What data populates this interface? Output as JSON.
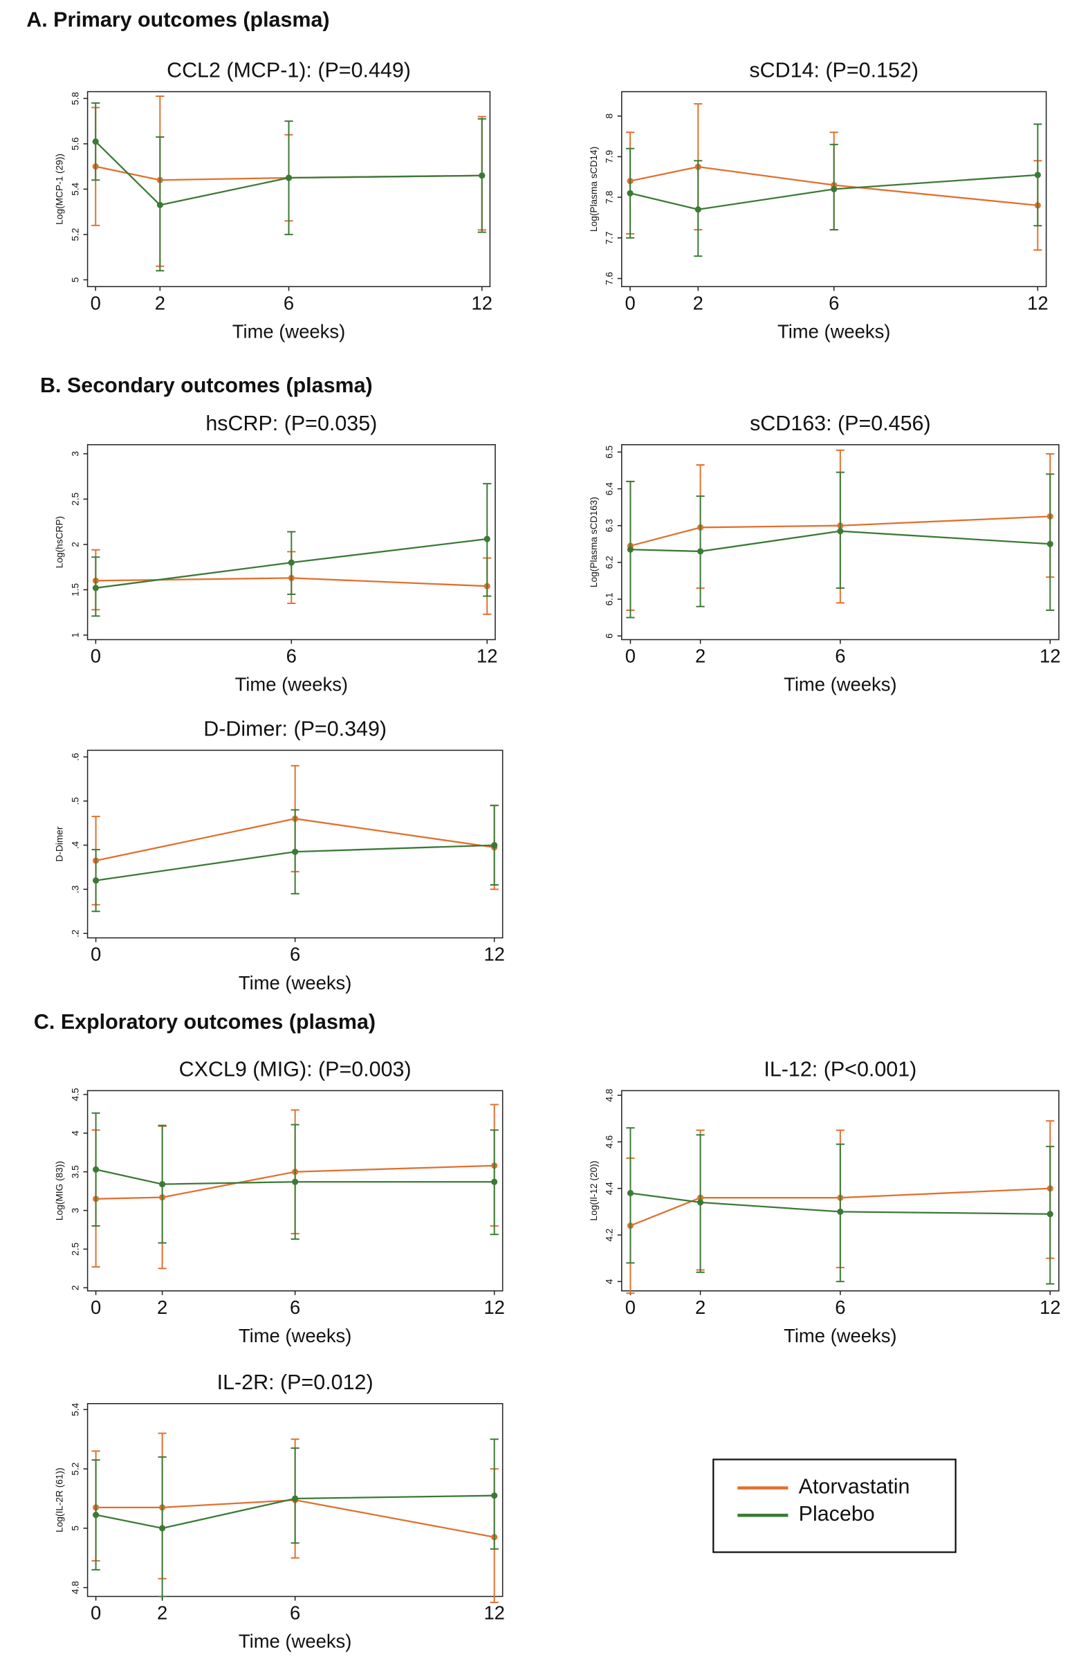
{
  "sections": [
    "A. Primary outcomes (plasma)",
    "B. Secondary outcomes (plasma)",
    "C. Exploratory outcomes (plasma)"
  ],
  "chart_data": [
    {
      "type": "line",
      "title": "CCL2 (MCP-1): (P=0.449)",
      "xlabel": "Time (weeks)",
      "ylabel": "Log(MCP-1 (29))",
      "x": [
        0,
        2,
        6,
        12
      ],
      "xlim": [
        -0.25,
        12.25
      ],
      "xticks": [
        0,
        2,
        6,
        12
      ],
      "ylim": [
        4.97,
        5.83
      ],
      "yticks": [
        5,
        5.2,
        5.4,
        5.6,
        5.8
      ],
      "series": [
        {
          "name": "Atorvastatin",
          "color": "#e0702e",
          "values": [
            5.5,
            5.44,
            5.45,
            5.46
          ],
          "lower": [
            5.24,
            5.06,
            5.26,
            5.22
          ],
          "upper": [
            5.76,
            5.81,
            5.64,
            5.72
          ]
        },
        {
          "name": "Placebo",
          "color": "#3b7a35",
          "values": [
            5.61,
            5.33,
            5.45,
            5.46
          ],
          "lower": [
            5.44,
            5.04,
            5.2,
            5.21
          ],
          "upper": [
            5.78,
            5.63,
            5.7,
            5.71
          ]
        }
      ]
    },
    {
      "type": "line",
      "title": "sCD14: (P=0.152)",
      "xlabel": "Time (weeks)",
      "ylabel": "Log(Plasma sCD14)",
      "x": [
        0,
        2,
        6,
        12
      ],
      "xlim": [
        -0.25,
        12.25
      ],
      "xticks": [
        0,
        2,
        6,
        12
      ],
      "ylim": [
        7.58,
        8.06
      ],
      "yticks": [
        7.6,
        7.7,
        7.8,
        7.9,
        8
      ],
      "series": [
        {
          "name": "Atorvastatin",
          "color": "#e0702e",
          "values": [
            7.84,
            7.875,
            7.83,
            7.78
          ],
          "lower": [
            7.71,
            7.72,
            7.72,
            7.67
          ],
          "upper": [
            7.96,
            8.03,
            7.96,
            7.89
          ]
        },
        {
          "name": "Placebo",
          "color": "#3b7a35",
          "values": [
            7.81,
            7.77,
            7.82,
            7.855
          ],
          "lower": [
            7.7,
            7.655,
            7.72,
            7.73
          ],
          "upper": [
            7.92,
            7.89,
            7.93,
            7.98
          ]
        }
      ]
    },
    {
      "type": "line",
      "title": "hsCRP: (P=0.035)",
      "xlabel": "Time (weeks)",
      "ylabel": "Log(hsCRP)",
      "x": [
        0,
        6,
        12
      ],
      "xlim": [
        -0.25,
        12.25
      ],
      "xticks": [
        0,
        6,
        12
      ],
      "ylim": [
        0.95,
        3.1
      ],
      "yticks": [
        1,
        1.5,
        2,
        2.5,
        3
      ],
      "series": [
        {
          "name": "Atorvastatin",
          "color": "#e0702e",
          "values": [
            1.6,
            1.63,
            1.54
          ],
          "lower": [
            1.28,
            1.35,
            1.23
          ],
          "upper": [
            1.94,
            1.92,
            1.85
          ]
        },
        {
          "name": "Placebo",
          "color": "#3b7a35",
          "values": [
            1.52,
            1.8,
            2.06
          ],
          "lower": [
            1.21,
            1.45,
            1.43
          ],
          "upper": [
            1.86,
            2.14,
            2.67
          ]
        }
      ]
    },
    {
      "type": "line",
      "title": "sCD163: (P=0.456)",
      "xlabel": "Time (weeks)",
      "ylabel": "Log(Plasma sCD163)",
      "x": [
        0,
        2,
        6,
        12
      ],
      "xlim": [
        -0.25,
        12.25
      ],
      "xticks": [
        0,
        2,
        6,
        12
      ],
      "ylim": [
        5.99,
        6.52
      ],
      "yticks": [
        6,
        6.1,
        6.2,
        6.3,
        6.4,
        6.5
      ],
      "series": [
        {
          "name": "Atorvastatin",
          "color": "#e0702e",
          "values": [
            6.245,
            6.295,
            6.3,
            6.325
          ],
          "lower": [
            6.07,
            6.13,
            6.09,
            6.16
          ],
          "upper": [
            6.42,
            6.465,
            6.505,
            6.495
          ]
        },
        {
          "name": "Placebo",
          "color": "#3b7a35",
          "values": [
            6.235,
            6.23,
            6.285,
            6.25
          ],
          "lower": [
            6.05,
            6.08,
            6.13,
            6.07
          ],
          "upper": [
            6.42,
            6.38,
            6.445,
            6.44
          ]
        }
      ]
    },
    {
      "type": "line",
      "title": "D-Dimer: (P=0.349)",
      "xlabel": "Time (weeks)",
      "ylabel": "D-Dimer",
      "x": [
        0,
        6,
        12
      ],
      "xlim": [
        -0.25,
        12.25
      ],
      "xticks": [
        0,
        6,
        12
      ],
      "ylim": [
        0.19,
        0.615
      ],
      "yticks": [
        {
          "value": 0.2,
          "label": ".2"
        },
        {
          "value": 0.3,
          "label": ".3"
        },
        {
          "value": 0.4,
          "label": ".4"
        },
        {
          "value": 0.5,
          "label": ".5"
        },
        {
          "value": 0.6,
          "label": ".6"
        }
      ],
      "series": [
        {
          "name": "Atorvastatin",
          "color": "#e0702e",
          "values": [
            0.365,
            0.46,
            0.395
          ],
          "lower": [
            0.265,
            0.34,
            0.3
          ],
          "upper": [
            0.465,
            0.58,
            0.49
          ]
        },
        {
          "name": "Placebo",
          "color": "#3b7a35",
          "values": [
            0.32,
            0.385,
            0.4
          ],
          "lower": [
            0.25,
            0.29,
            0.31
          ],
          "upper": [
            0.39,
            0.48,
            0.49
          ]
        }
      ]
    },
    {
      "type": "line",
      "title": "CXCL9 (MIG): (P=0.003)",
      "xlabel": "Time (weeks)",
      "ylabel": "Log(MIG (83))",
      "x": [
        0,
        2,
        6,
        12
      ],
      "xlim": [
        -0.25,
        12.25
      ],
      "xticks": [
        0,
        2,
        6,
        12
      ],
      "ylim": [
        1.96,
        4.55
      ],
      "yticks": [
        2,
        2.5,
        3,
        3.5,
        4,
        4.5
      ],
      "series": [
        {
          "name": "Atorvastatin",
          "color": "#e0702e",
          "values": [
            3.15,
            3.17,
            3.5,
            3.58
          ],
          "lower": [
            2.27,
            2.25,
            2.7,
            2.8
          ],
          "upper": [
            4.04,
            4.09,
            4.3,
            4.37
          ]
        },
        {
          "name": "Placebo",
          "color": "#3b7a35",
          "values": [
            3.53,
            3.34,
            3.37,
            3.37
          ],
          "lower": [
            2.8,
            2.58,
            2.63,
            2.69
          ],
          "upper": [
            4.26,
            4.1,
            4.11,
            4.04
          ]
        }
      ]
    },
    {
      "type": "line",
      "title": "IL-12: (P<0.001)",
      "xlabel": "Time (weeks)",
      "ylabel": "Log(Il-12 (20))",
      "x": [
        0,
        2,
        6,
        12
      ],
      "xlim": [
        -0.25,
        12.25
      ],
      "xticks": [
        0,
        2,
        6,
        12
      ],
      "ylim": [
        3.96,
        4.82
      ],
      "yticks": [
        4,
        4.2,
        4.4,
        4.6,
        4.8
      ],
      "series": [
        {
          "name": "Atorvastatin",
          "color": "#e0702e",
          "values": [
            4.24,
            4.36,
            4.36,
            4.4
          ],
          "lower": [
            3.95,
            4.05,
            4.06,
            4.1
          ],
          "upper": [
            4.53,
            4.65,
            4.65,
            4.69
          ]
        },
        {
          "name": "Placebo",
          "color": "#3b7a35",
          "values": [
            4.38,
            4.34,
            4.3,
            4.29
          ],
          "lower": [
            4.08,
            4.04,
            4.0,
            3.99
          ],
          "upper": [
            4.66,
            4.63,
            4.59,
            4.58
          ]
        }
      ]
    },
    {
      "type": "line",
      "title": "IL-2R: (P=0.012)",
      "xlabel": "Time (weeks)",
      "ylabel": "Log(IL-2R (61))",
      "x": [
        0,
        2,
        6,
        12
      ],
      "xlim": [
        -0.25,
        12.25
      ],
      "xticks": [
        0,
        2,
        6,
        12
      ],
      "ylim": [
        4.77,
        5.42
      ],
      "yticks": [
        4.8,
        5,
        5.2,
        5.4
      ],
      "series": [
        {
          "name": "Atorvastatin",
          "color": "#e0702e",
          "values": [
            5.07,
            5.07,
            5.095,
            4.97
          ],
          "lower": [
            4.89,
            4.83,
            4.9,
            4.75
          ],
          "upper": [
            5.26,
            5.32,
            5.3,
            5.2
          ]
        },
        {
          "name": "Placebo",
          "color": "#3b7a35",
          "values": [
            5.045,
            5.0,
            5.1,
            5.11
          ],
          "lower": [
            4.86,
            4.77,
            4.95,
            4.93
          ],
          "upper": [
            5.23,
            5.24,
            5.27,
            5.3
          ]
        }
      ]
    }
  ]
}
